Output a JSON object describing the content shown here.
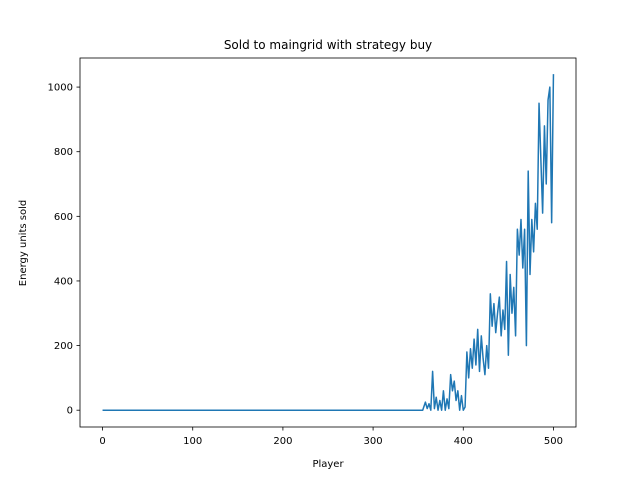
{
  "chart_data": {
    "type": "line",
    "title": "Sold to maingrid with strategy buy",
    "xlabel": "Player",
    "ylabel": "Energy units sold",
    "xlim": [
      -25,
      525
    ],
    "ylim": [
      -52,
      1090
    ],
    "xticks": [
      0,
      100,
      200,
      300,
      400,
      500
    ],
    "yticks": [
      0,
      200,
      400,
      600,
      800,
      1000
    ],
    "grid": false,
    "series": [
      {
        "color": "#1f77b4",
        "x": [
          0,
          100,
          200,
          300,
          355,
          358,
          360,
          362,
          364,
          366,
          368,
          370,
          372,
          374,
          376,
          378,
          380,
          382,
          384,
          386,
          388,
          390,
          392,
          394,
          396,
          398,
          400,
          402,
          404,
          406,
          408,
          410,
          412,
          414,
          416,
          418,
          420,
          422,
          424,
          426,
          428,
          430,
          432,
          434,
          436,
          438,
          440,
          442,
          444,
          446,
          448,
          450,
          452,
          454,
          456,
          458,
          460,
          462,
          464,
          466,
          468,
          470,
          472,
          474,
          476,
          478,
          480,
          482,
          484,
          486,
          488,
          490,
          492,
          494,
          496,
          498,
          500
        ],
        "y": [
          0,
          0,
          0,
          0,
          0,
          25,
          5,
          20,
          0,
          120,
          5,
          40,
          0,
          30,
          0,
          60,
          0,
          35,
          5,
          110,
          60,
          90,
          30,
          60,
          0,
          45,
          0,
          10,
          180,
          100,
          190,
          130,
          220,
          140,
          250,
          120,
          230,
          160,
          110,
          200,
          130,
          360,
          260,
          330,
          240,
          300,
          350,
          230,
          310,
          250,
          460,
          170,
          420,
          300,
          380,
          230,
          560,
          480,
          590,
          440,
          560,
          200,
          740,
          420,
          590,
          490,
          640,
          560,
          950,
          780,
          610,
          880,
          700,
          960,
          1000,
          580,
          1040
        ]
      }
    ]
  }
}
